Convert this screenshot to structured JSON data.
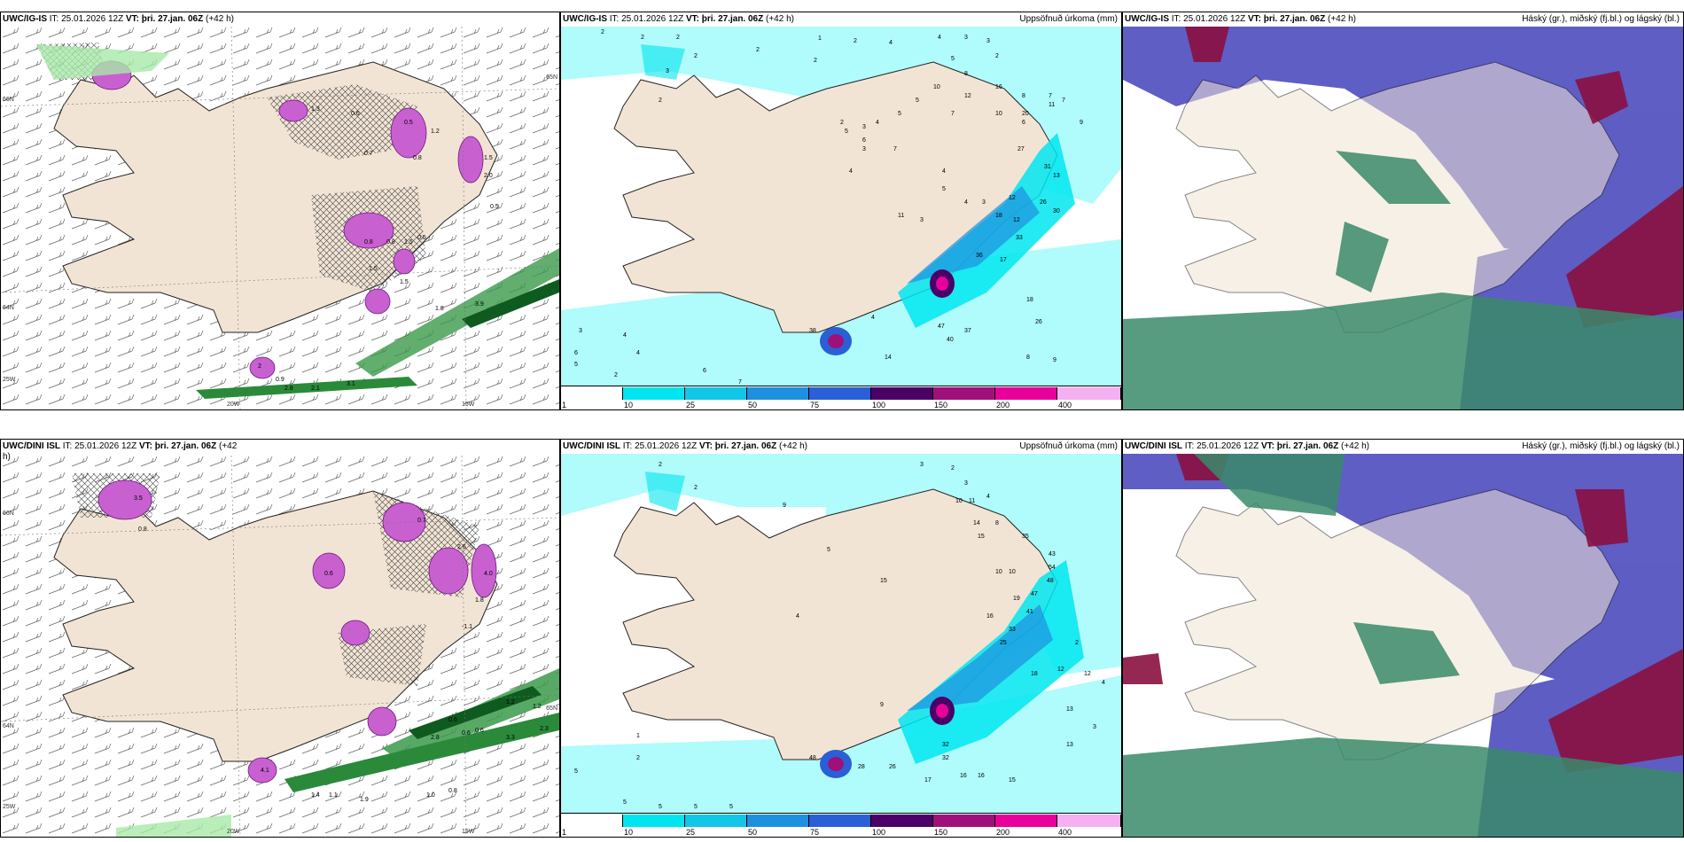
{
  "panels": {
    "top_left": {
      "model": "UWC/IG-IS",
      "it_label": "IT:",
      "it_value": "25.01.2026 12Z",
      "vt_label": "VT:",
      "vt_value": "þri. 27.jan. 06Z",
      "lead": "(+42 h)",
      "axis": {
        "lat_a": "66N",
        "lat_b": "64N",
        "lat_c": "65N",
        "lon_a": "20W",
        "lon_b": "15W",
        "corner": "25W"
      }
    },
    "top_mid": {
      "model": "UWC/IG-IS",
      "it_label": "IT:",
      "it_value": "25.01.2026 12Z",
      "vt_label": "VT:",
      "vt_value": "þri. 27.jan. 06Z",
      "lead": "(+42 h)",
      "right_title": "Uppsöfnuð úrkoma (mm)"
    },
    "top_right": {
      "model": "UWC/IG-IS",
      "it_label": "IT:",
      "it_value": "25.01.2026 12Z",
      "vt_label": "VT:",
      "vt_value": "þri. 27.jan. 06Z",
      "lead": "(+42 h)",
      "right_title": "Háský (gr.), miðský (fj.bl.) og lágský (bl.)"
    },
    "bottom_left": {
      "model": "UWC/DINI ISL",
      "it_label": "IT:",
      "it_value": "25.01.2026 12Z",
      "vt_label": "VT:",
      "vt_value": "þri. 27.jan. 06Z",
      "lead": "(+42",
      "lead_end": "h)",
      "axis": {
        "lat_a": "66N",
        "lat_b": "64N",
        "lat_c": "65N",
        "lon_a": "20W",
        "lon_b": "15W",
        "corner": "25W"
      }
    },
    "bottom_mid": {
      "model": "UWC/DINI ISL",
      "it_label": "IT:",
      "it_value": "25.01.2026 12Z",
      "vt_label": "VT:",
      "vt_value": "þri. 27.jan. 06Z",
      "lead": "(+42 h)",
      "right_title": "Uppsöfnuð úrkoma (mm)"
    },
    "bottom_right": {
      "model": "UWC/DINI ISL",
      "it_label": "IT:",
      "it_value": "25.01.2026 12Z",
      "vt_label": "VT:",
      "vt_value": "þri. 27.jan. 06Z",
      "lead": "(+42 h)",
      "right_title": "Háský (gr.), miðský (fj.bl.) og lágský (bl.)"
    }
  },
  "colorbar": {
    "labels": [
      "1",
      "10",
      "25",
      "50",
      "75",
      "100",
      "150",
      "200",
      "400"
    ],
    "colors": [
      "#ffffff",
      "#00e6f0",
      "#12c6e8",
      "#1e90e0",
      "#2a5fd6",
      "#4a0066",
      "#a0107a",
      "#e8009a",
      "#f4b0f0"
    ]
  },
  "colors": {
    "land": "#f2e4d4",
    "ocean_tl": "#ffffff",
    "snow": "#c860d0",
    "rain": "#2a8a3a",
    "precip_light": "#b0fbfb",
    "cloud_high": "#8a1040",
    "cloud_mid": "#5050c0",
    "cloud_low": "#3a8a6a"
  },
  "top_left_values": [
    "2",
    "0.9",
    "1.3",
    "0.6",
    "0.5",
    "1.2",
    "0.7",
    "0.8",
    "1.5",
    "2.0",
    "0.5",
    "0.8",
    "0.8",
    "1.5",
    "0.5",
    "1.5",
    "1.5",
    "1.8",
    "2.8",
    "3.1",
    "2.1",
    "3.9"
  ],
  "bottom_left_values": [
    "0.6",
    "3.5",
    "0.8",
    "0.7",
    "2.6",
    "4.0",
    "1.8",
    "-1.1",
    "0.6",
    "0.6",
    "0.6",
    "1.2",
    "1.2",
    "2.3",
    "3.3",
    "1.4",
    "1.1",
    "1.0",
    "0.8",
    "1.9",
    "2.8",
    "4.1"
  ],
  "top_mid_values": [
    "2",
    "2",
    "2",
    "2",
    "3",
    "2",
    "2",
    "2",
    "1",
    "2",
    "4",
    "4",
    "3",
    "3",
    "2",
    "5",
    "8",
    "10",
    "12",
    "16",
    "8",
    "7",
    "7",
    "9",
    "10",
    "20",
    "11",
    "6",
    "7",
    "5",
    "5",
    "4",
    "5",
    "6",
    "7",
    "2",
    "3",
    "3",
    "4",
    "4",
    "5",
    "4",
    "3",
    "12",
    "27",
    "31",
    "13",
    "26",
    "30",
    "18",
    "12",
    "11",
    "3",
    "33",
    "17",
    "36",
    "18",
    "26",
    "47",
    "37",
    "40",
    "14",
    "8",
    "9",
    "38",
    "4",
    "3",
    "6",
    "2",
    "4",
    "5",
    "4",
    "6",
    "7"
  ],
  "bottom_mid_values": [
    "2",
    "2",
    "3",
    "2",
    "3",
    "4",
    "10",
    "11",
    "14",
    "15",
    "8",
    "9",
    "5",
    "15",
    "10",
    "10",
    "35",
    "43",
    "54",
    "48",
    "47",
    "41",
    "33",
    "25",
    "19",
    "16",
    "18",
    "12",
    "12",
    "13",
    "32",
    "32",
    "28",
    "26",
    "17",
    "16",
    "16",
    "15",
    "4",
    "1",
    "2",
    "5",
    "5",
    "5",
    "5",
    "5",
    "48",
    "9",
    "4",
    "3",
    "2",
    "13"
  ],
  "map_text": {
    "chart_top": "",
    "chart_bottom": ""
  }
}
